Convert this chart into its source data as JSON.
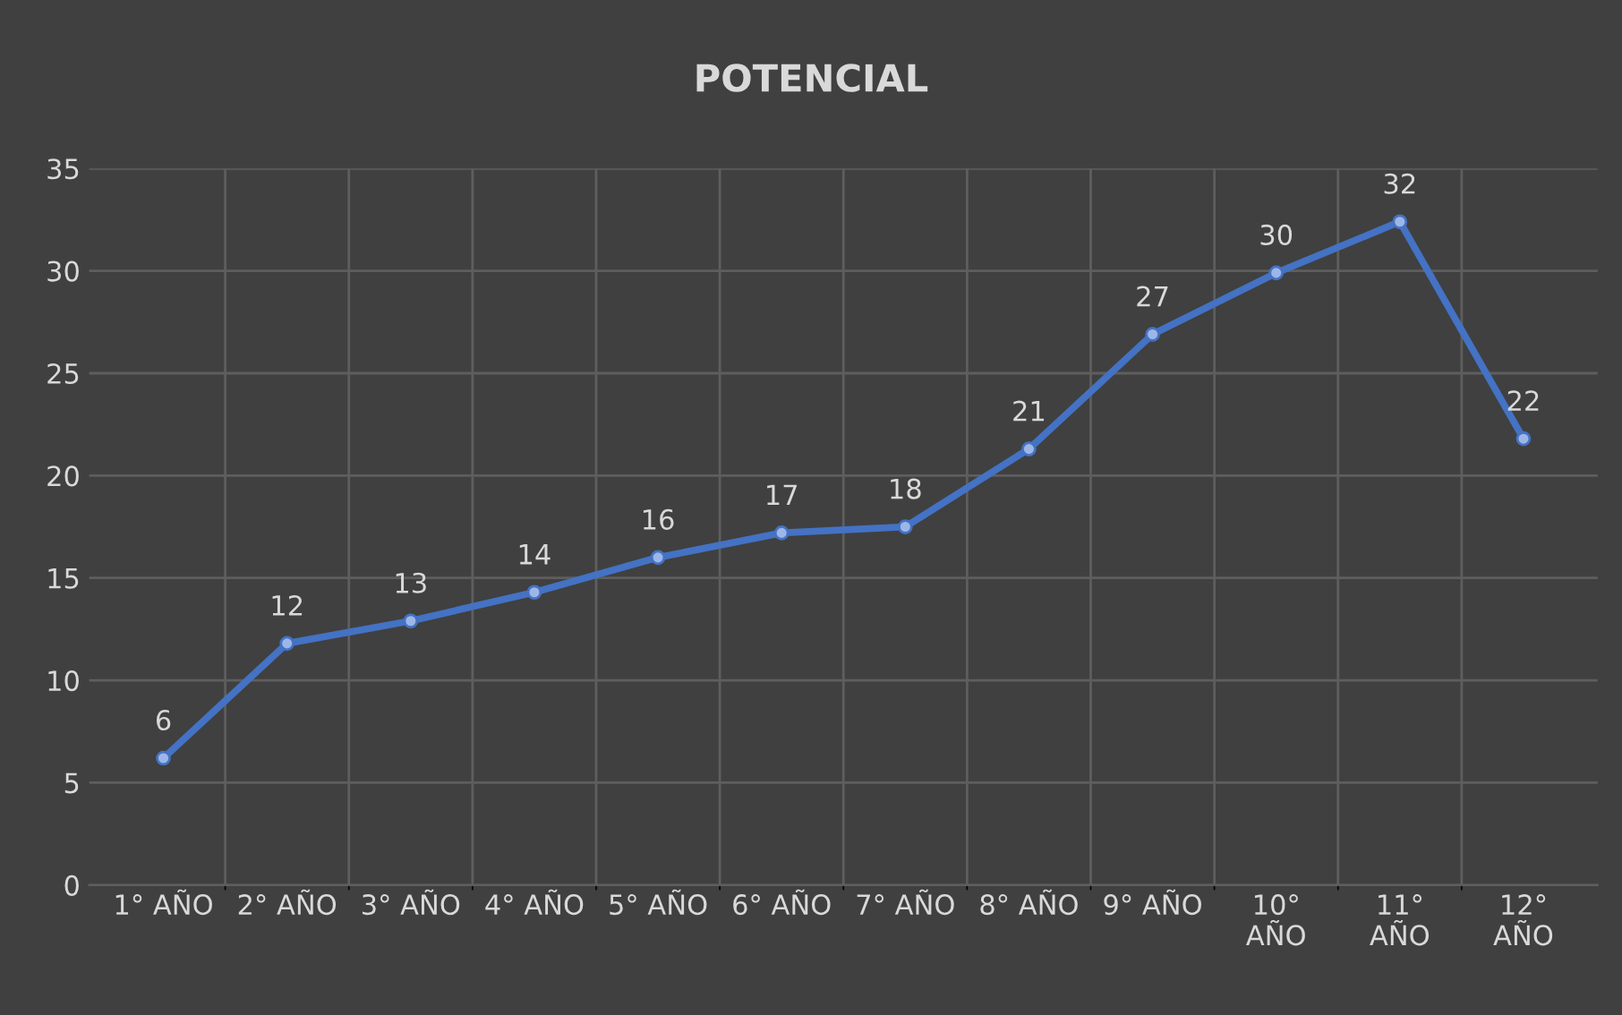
{
  "chart_data": {
    "type": "line",
    "title": "POTENCIAL",
    "categories": [
      "1° AÑO",
      "2° AÑO",
      "3° AÑO",
      "4° AÑO",
      "5° AÑO",
      "6° AÑO",
      "7° AÑO",
      "8° AÑO",
      "9° AÑO",
      "10° AÑO",
      "11° AÑO",
      "12° AÑO"
    ],
    "series": [
      {
        "color": "#4472c4",
        "values": [
          6.2,
          11.8,
          12.9,
          14.3,
          16.0,
          17.2,
          17.5,
          21.3,
          26.9,
          29.9,
          32.4,
          21.8
        ],
        "value_labels": [
          "6",
          "12",
          "13",
          "14",
          "16",
          "17",
          "18",
          "21",
          "27",
          "30",
          "32",
          "22"
        ]
      }
    ],
    "ylim": [
      0,
      35
    ],
    "yticks": [
      0,
      5,
      10,
      15,
      20,
      25,
      30,
      35
    ],
    "grid": true,
    "marker": "circle",
    "line_style": "solid",
    "legend": false
  }
}
